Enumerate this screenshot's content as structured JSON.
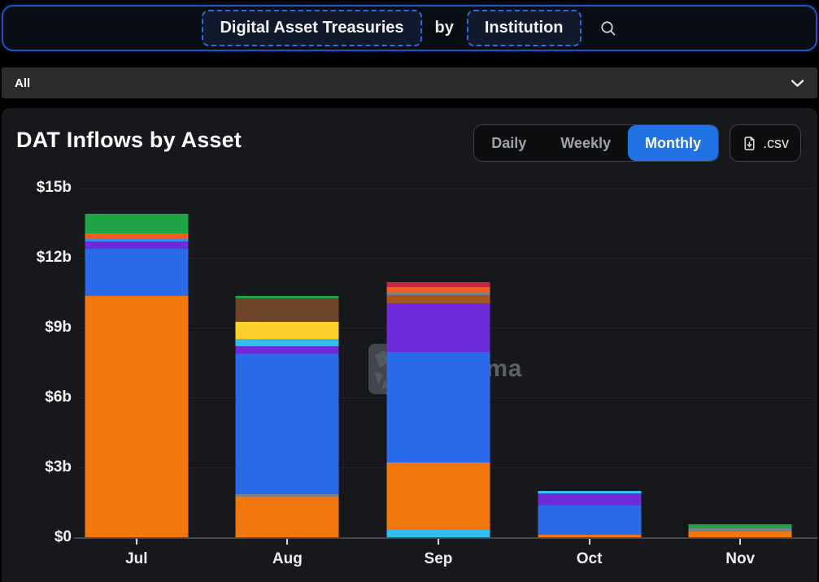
{
  "header": {
    "primary_button": "Digital Asset Treasuries",
    "connector": "by",
    "secondary_button": "Institution"
  },
  "filter_bar": {
    "label": "All"
  },
  "panel": {
    "title": "DAT Inflows by Asset",
    "range_tabs": [
      {
        "label": "Daily",
        "active": false
      },
      {
        "label": "Weekly",
        "active": false
      },
      {
        "label": "Monthly",
        "active": true
      }
    ],
    "csv_label": ".csv",
    "active_tab_color": "#2172e5"
  },
  "watermark": {
    "text": "DefiLlama"
  },
  "chart_data": {
    "type": "bar",
    "stacked": true,
    "title": "DAT Inflows by Asset",
    "unit": "USD billions",
    "categories": [
      "Jul",
      "Aug",
      "Sep",
      "Oct",
      "Nov"
    ],
    "ylim": [
      0,
      15
    ],
    "grid": true,
    "legend": false,
    "y_ticks": [
      {
        "label": "$15b",
        "value": 15
      },
      {
        "label": "$12b",
        "value": 12
      },
      {
        "label": "$9b",
        "value": 9
      },
      {
        "label": "$6b",
        "value": 6
      },
      {
        "label": "$3b",
        "value": 3
      },
      {
        "label": "$0",
        "value": 0
      }
    ],
    "totals_b": [
      13.9,
      10.35,
      10.95,
      2.0,
      0.55
    ],
    "colors": {
      "orange": "#F2770C",
      "orange_deep": "#F2601B",
      "blue": "#2B6AE8",
      "lightblue": "#3E8BF2",
      "purple": "#6D2BD9",
      "green": "#1FA347",
      "brown": "#6E4529",
      "yellow": "#FCD12A",
      "cyan": "#33BEF0",
      "red": "#C92443",
      "rust": "#A8561F",
      "gray": "#7A8186"
    },
    "bars": [
      {
        "month": "Jul",
        "segments": [
          {
            "color": "orange",
            "value": 10.35
          },
          {
            "color": "blue",
            "value": 2.05
          },
          {
            "color": "purple",
            "value": 0.3
          },
          {
            "color": "lightblue",
            "value": 0.1
          },
          {
            "color": "orange_deep",
            "value": 0.25
          },
          {
            "color": "green",
            "value": 0.85
          }
        ]
      },
      {
        "month": "Aug",
        "segments": [
          {
            "color": "orange",
            "value": 1.75
          },
          {
            "color": "gray",
            "value": 0.1
          },
          {
            "color": "blue",
            "value": 6.05
          },
          {
            "color": "purple",
            "value": 0.3
          },
          {
            "color": "cyan",
            "value": 0.3
          },
          {
            "color": "yellow",
            "value": 0.75
          },
          {
            "color": "brown",
            "value": 1.0
          },
          {
            "color": "green",
            "value": 0.1
          }
        ]
      },
      {
        "month": "Sep",
        "segments": [
          {
            "color": "cyan",
            "value": 0.3
          },
          {
            "color": "orange",
            "value": 2.9
          },
          {
            "color": "blue",
            "value": 4.75
          },
          {
            "color": "purple",
            "value": 2.1
          },
          {
            "color": "rust",
            "value": 0.35
          },
          {
            "color": "gray",
            "value": 0.1
          },
          {
            "color": "orange_deep",
            "value": 0.25
          },
          {
            "color": "red",
            "value": 0.2
          }
        ]
      },
      {
        "month": "Oct",
        "segments": [
          {
            "color": "orange",
            "value": 0.1
          },
          {
            "color": "blue",
            "value": 1.25
          },
          {
            "color": "purple",
            "value": 0.55
          },
          {
            "color": "cyan",
            "value": 0.1
          }
        ]
      },
      {
        "month": "Nov",
        "segments": [
          {
            "color": "orange",
            "value": 0.25
          },
          {
            "color": "gray",
            "value": 0.15
          },
          {
            "color": "green",
            "value": 0.15
          }
        ]
      }
    ]
  }
}
